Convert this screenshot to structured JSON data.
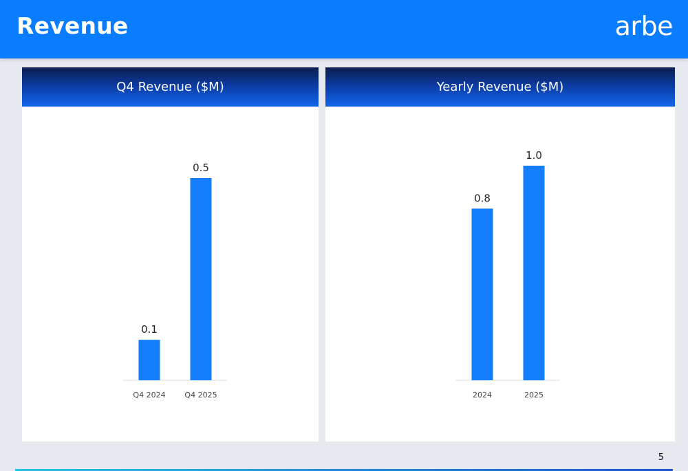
{
  "header": {
    "title": "Revenue",
    "logo_text": "arbe"
  },
  "page_number": "5",
  "colors": {
    "header_bg": "#0a7cff",
    "bar": "#137dfb",
    "panel_header_dark": "#0b1d4f"
  },
  "chart_data": [
    {
      "type": "bar",
      "title": "Q4 Revenue ($M)",
      "categories": [
        "Q4 2024",
        "Q4 2025"
      ],
      "values": [
        0.1,
        0.5
      ],
      "value_labels": [
        "0.1",
        "0.5"
      ],
      "ylim": [
        0,
        0.5
      ],
      "grid": false
    },
    {
      "type": "bar",
      "title": "Yearly Revenue ($M)",
      "categories": [
        "2024",
        "2025"
      ],
      "values": [
        0.8,
        1.0
      ],
      "value_labels": [
        "0.8",
        "1.0"
      ],
      "ylim": [
        0,
        1.0
      ],
      "grid": false
    }
  ]
}
